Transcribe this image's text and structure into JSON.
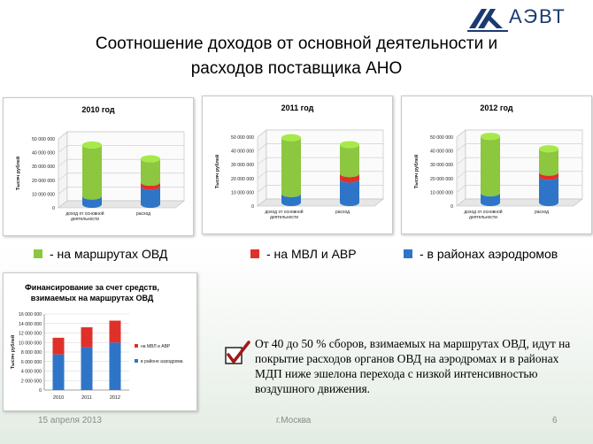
{
  "logo": {
    "text": "АЭВТ"
  },
  "title": {
    "line1": "Соотношение доходов от основной деятельности и",
    "line2": "расходов поставщика АНО"
  },
  "legend": [
    {
      "label": "- на маршрутах ОВД",
      "color": "#8dc63f"
    },
    {
      "label": "- на МВЛ и АВР",
      "color": "#e0302a"
    },
    {
      "label": "- в районах аэродромов",
      "color": "#2e75c8"
    }
  ],
  "chart_data": [
    {
      "type": "bar",
      "title": "2010 год",
      "ylabel": "Тысяч рублей",
      "ylim": [
        0,
        50000000
      ],
      "yticks": [
        "0",
        "10 000 000",
        "20 000 000",
        "30 000 000",
        "40 000 000",
        "50 000 000"
      ],
      "categories": [
        "доход от основной деятельности",
        "расход"
      ],
      "series": [
        {
          "values": [
            6000000,
            13000000
          ]
        },
        {
          "values": [
            0,
            3000000
          ]
        },
        {
          "values": [
            37000000,
            17000000
          ]
        }
      ]
    },
    {
      "type": "bar",
      "title": "2011 год",
      "ylabel": "Тысяч рублей",
      "ylim": [
        0,
        50000000
      ],
      "yticks": [
        "0",
        "10 000 000",
        "20 000 000",
        "30 000 000",
        "40 000 000",
        "50 000 000"
      ],
      "categories": [
        "доход от основной деятельности",
        "расход"
      ],
      "series": [
        {
          "values": [
            6500000,
            17000000
          ]
        },
        {
          "values": [
            0,
            4000000
          ]
        },
        {
          "values": [
            40500000,
            21000000
          ]
        }
      ]
    },
    {
      "type": "bar",
      "title": "2012 год",
      "ylabel": "Тысяч рублей",
      "ylim": [
        0,
        50000000
      ],
      "yticks": [
        "0",
        "10 000 000",
        "20 000 000",
        "30 000 000",
        "40 000 000",
        "50 000 000"
      ],
      "categories": [
        "доход от основной деятельности",
        "расход"
      ],
      "series": [
        {
          "values": [
            7000000,
            19000000
          ]
        },
        {
          "values": [
            0,
            3000000
          ]
        },
        {
          "values": [
            41000000,
            17000000
          ]
        }
      ]
    },
    {
      "type": "bar",
      "title": "Финансирование за счет средств, взимаемых на маршрутах ОВД",
      "ylabel": "Тысяч рублей",
      "ylim": [
        0,
        16000000
      ],
      "yticks": [
        "0",
        "2 000 000",
        "4 000 000",
        "6 000 000",
        "8 000 000",
        "10 000 000",
        "12 000 000",
        "14 000 000",
        "16 000 000"
      ],
      "categories": [
        "2010",
        "2011",
        "2012"
      ],
      "series": [
        {
          "name": "в районе аэродрома",
          "values": [
            7500000,
            9000000,
            10000000
          ]
        },
        {
          "name": "на МВЛ и АВР",
          "values": [
            3500000,
            4200000,
            4600000
          ]
        }
      ]
    }
  ],
  "note": "От 40 до 50 % сборов, взимаемых на маршрутах ОВД, идут на покрытие расходов органов ОВД на аэродромах и в районах МДП ниже эшелона перехода с низкой интенсивностью воздушного движения.",
  "footer": {
    "date": "15 апреля 2013",
    "city": "г.Москва",
    "page": "6"
  }
}
